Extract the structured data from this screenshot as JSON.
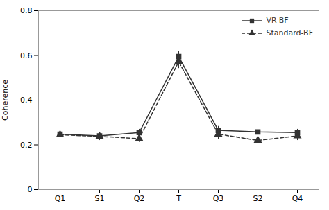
{
  "chart_data": {
    "type": "line",
    "ylabel": "Coherence",
    "categories": [
      "Q1",
      "S1",
      "Q2",
      "T",
      "Q3",
      "S2",
      "Q4"
    ],
    "series": [
      {
        "name": "VR-BF",
        "color": "#333333",
        "marker": "square",
        "line_style": "solid",
        "values": [
          0.248,
          0.24,
          0.255,
          0.595,
          0.265,
          0.258,
          0.255
        ],
        "errors": [
          0.018,
          0.012,
          0.015,
          0.025,
          0.018,
          0.015,
          0.015
        ]
      },
      {
        "name": "Standard-BF",
        "color": "#333333",
        "marker": "triangle",
        "line_style": "dashed",
        "values": [
          0.245,
          0.238,
          0.228,
          0.572,
          0.248,
          0.22,
          0.24
        ],
        "errors": [
          0.015,
          0.018,
          0.016,
          0.03,
          0.022,
          0.025,
          0.02
        ]
      }
    ],
    "ylim": [
      0,
      0.8
    ],
    "yticks": [
      0,
      0.2,
      0.4,
      0.6,
      0.8
    ],
    "grid": false,
    "legend": "upper right"
  }
}
